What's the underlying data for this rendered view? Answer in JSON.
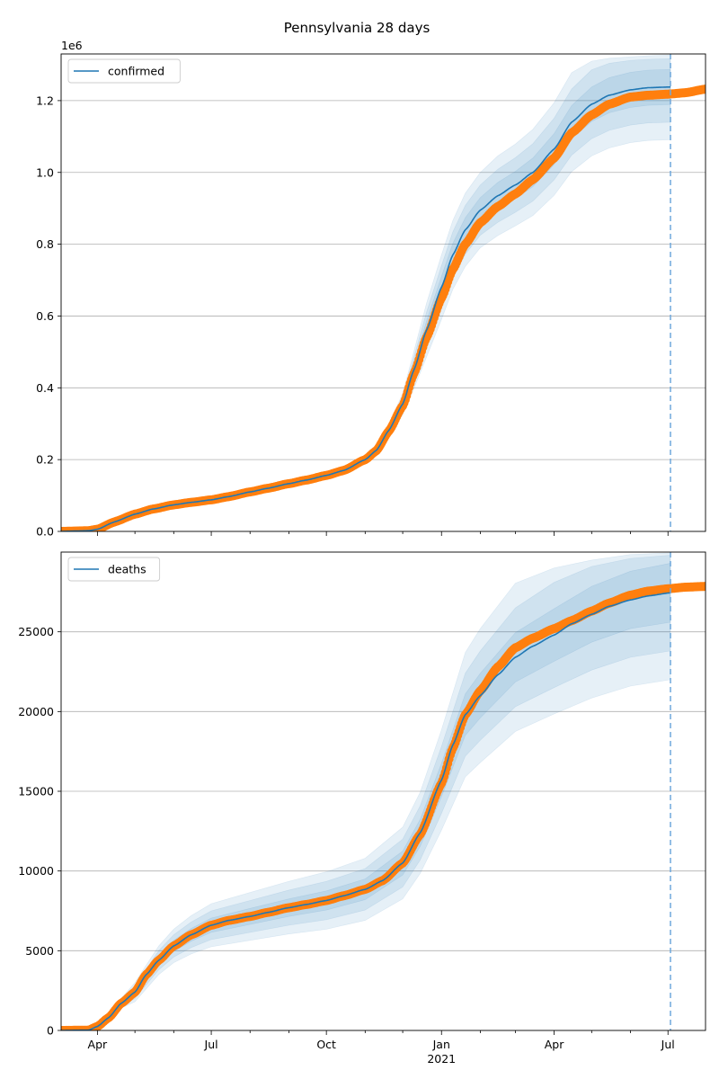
{
  "chart_data": {
    "title": "Pennsylvania 28 days",
    "type": "line",
    "x_axis": {
      "tick_labels": [
        "Apr",
        "Jul",
        "Oct",
        "Jan",
        "Apr",
        "Jul"
      ],
      "tick_dates": [
        "2020-04-01",
        "2020-07-01",
        "2020-10-01",
        "2021-01-01",
        "2021-04-01",
        "2021-07-01"
      ],
      "year_label": "2021",
      "range": [
        "2020-03-03",
        "2021-07-31"
      ]
    },
    "forecast_marker_date": "2021-07-03",
    "panels": [
      {
        "legend": "confirmed",
        "legend_position": "top-left",
        "offset_label": "1e6",
        "ylim": [
          0,
          1.33
        ],
        "yticks": [
          0,
          0.2,
          0.4,
          0.6,
          0.8,
          1.0,
          1.2
        ],
        "ytick_labels": [
          "0.0",
          "0.2",
          "0.4",
          "0.6",
          "0.8",
          "1.0",
          "1.2"
        ],
        "grid": "y",
        "observed": [
          [
            "2020-03-03",
            0
          ],
          [
            "2020-03-25",
            0.002
          ],
          [
            "2020-04-01",
            0.006
          ],
          [
            "2020-04-15",
            0.027
          ],
          [
            "2020-05-01",
            0.048
          ],
          [
            "2020-05-15",
            0.062
          ],
          [
            "2020-06-01",
            0.074
          ],
          [
            "2020-06-15",
            0.081
          ],
          [
            "2020-07-01",
            0.088
          ],
          [
            "2020-07-15",
            0.097
          ],
          [
            "2020-08-01",
            0.11
          ],
          [
            "2020-08-15",
            0.12
          ],
          [
            "2020-09-01",
            0.133
          ],
          [
            "2020-09-15",
            0.143
          ],
          [
            "2020-10-01",
            0.156
          ],
          [
            "2020-10-15",
            0.17
          ],
          [
            "2020-11-01",
            0.2
          ],
          [
            "2020-11-10",
            0.225
          ],
          [
            "2020-11-20",
            0.28
          ],
          [
            "2020-12-01",
            0.35
          ],
          [
            "2020-12-10",
            0.44
          ],
          [
            "2020-12-20",
            0.54
          ],
          [
            "2021-01-01",
            0.65
          ],
          [
            "2021-01-10",
            0.73
          ],
          [
            "2021-01-20",
            0.8
          ],
          [
            "2021-02-01",
            0.86
          ],
          [
            "2021-02-15",
            0.905
          ],
          [
            "2021-03-01",
            0.94
          ],
          [
            "2021-03-15",
            0.98
          ],
          [
            "2021-04-01",
            1.04
          ],
          [
            "2021-04-15",
            1.11
          ],
          [
            "2021-05-01",
            1.16
          ],
          [
            "2021-05-15",
            1.19
          ],
          [
            "2021-06-01",
            1.21
          ],
          [
            "2021-06-15",
            1.215
          ],
          [
            "2021-07-01",
            1.218
          ],
          [
            "2021-07-15",
            1.222
          ],
          [
            "2021-07-31",
            1.232
          ]
        ],
        "model": [
          [
            "2020-03-03",
            0
          ],
          [
            "2020-03-25",
            0.002
          ],
          [
            "2020-04-01",
            0.006
          ],
          [
            "2020-04-15",
            0.027
          ],
          [
            "2020-05-01",
            0.048
          ],
          [
            "2020-05-15",
            0.062
          ],
          [
            "2020-06-01",
            0.074
          ],
          [
            "2020-06-15",
            0.081
          ],
          [
            "2020-07-01",
            0.088
          ],
          [
            "2020-07-15",
            0.097
          ],
          [
            "2020-08-01",
            0.11
          ],
          [
            "2020-08-15",
            0.12
          ],
          [
            "2020-09-01",
            0.133
          ],
          [
            "2020-09-15",
            0.143
          ],
          [
            "2020-10-01",
            0.156
          ],
          [
            "2020-10-15",
            0.17
          ],
          [
            "2020-11-01",
            0.2
          ],
          [
            "2020-11-10",
            0.226
          ],
          [
            "2020-11-20",
            0.282
          ],
          [
            "2020-12-01",
            0.355
          ],
          [
            "2020-12-10",
            0.45
          ],
          [
            "2020-12-20",
            0.56
          ],
          [
            "2021-01-01",
            0.68
          ],
          [
            "2021-01-10",
            0.77
          ],
          [
            "2021-01-20",
            0.84
          ],
          [
            "2021-02-01",
            0.895
          ],
          [
            "2021-02-15",
            0.935
          ],
          [
            "2021-03-01",
            0.965
          ],
          [
            "2021-03-15",
            1.0
          ],
          [
            "2021-04-01",
            1.065
          ],
          [
            "2021-04-15",
            1.14
          ],
          [
            "2021-05-01",
            1.19
          ],
          [
            "2021-05-15",
            1.215
          ],
          [
            "2021-06-01",
            1.23
          ],
          [
            "2021-06-15",
            1.236
          ],
          [
            "2021-07-03",
            1.238
          ]
        ],
        "uncertainty_band": [
          [
            "2020-11-10",
            0.225,
            0.227,
            0.222,
            0.23,
            0.22,
            0.232
          ],
          [
            "2020-11-20",
            0.278,
            0.286,
            0.272,
            0.292,
            0.266,
            0.298
          ],
          [
            "2020-12-01",
            0.345,
            0.365,
            0.335,
            0.375,
            0.325,
            0.385
          ],
          [
            "2020-12-10",
            0.432,
            0.468,
            0.415,
            0.485,
            0.398,
            0.502
          ],
          [
            "2020-12-20",
            0.535,
            0.585,
            0.51,
            0.61,
            0.485,
            0.635
          ],
          [
            "2021-01-01",
            0.65,
            0.71,
            0.62,
            0.74,
            0.59,
            0.77
          ],
          [
            "2021-01-10",
            0.738,
            0.802,
            0.706,
            0.834,
            0.674,
            0.866
          ],
          [
            "2021-01-20",
            0.806,
            0.874,
            0.772,
            0.908,
            0.738,
            0.942
          ],
          [
            "2021-02-01",
            0.86,
            0.93,
            0.825,
            0.965,
            0.79,
            1.0
          ],
          [
            "2021-02-15",
            0.898,
            0.972,
            0.861,
            1.009,
            0.824,
            1.046
          ],
          [
            "2021-03-01",
            0.927,
            1.003,
            0.889,
            1.041,
            0.851,
            1.079
          ],
          [
            "2021-03-15",
            0.96,
            1.04,
            0.92,
            1.08,
            0.88,
            1.12
          ],
          [
            "2021-04-01",
            1.022,
            1.108,
            0.979,
            1.151,
            0.936,
            1.194
          ],
          [
            "2021-04-15",
            1.094,
            1.186,
            1.048,
            1.232,
            1.002,
            1.278
          ],
          [
            "2021-05-01",
            1.142,
            1.238,
            1.094,
            1.286,
            1.046,
            1.31
          ],
          [
            "2021-05-15",
            1.166,
            1.264,
            1.117,
            1.304,
            1.068,
            1.318
          ],
          [
            "2021-06-01",
            1.181,
            1.279,
            1.132,
            1.312,
            1.083,
            1.322
          ],
          [
            "2021-06-15",
            1.187,
            1.285,
            1.138,
            1.315,
            1.089,
            1.325
          ],
          [
            "2021-07-03",
            1.189,
            1.287,
            1.14,
            1.317,
            1.091,
            1.327
          ]
        ]
      },
      {
        "legend": "deaths",
        "legend_position": "top-left",
        "offset_label": "",
        "ylim": [
          0,
          30000
        ],
        "yticks": [
          0,
          5000,
          10000,
          15000,
          20000,
          25000
        ],
        "ytick_labels": [
          "0",
          "5000",
          "10000",
          "15000",
          "20000",
          "25000"
        ],
        "grid": "y",
        "observed": [
          [
            "2020-03-03",
            0
          ],
          [
            "2020-03-25",
            20
          ],
          [
            "2020-04-01",
            250
          ],
          [
            "2020-04-10",
            800
          ],
          [
            "2020-04-20",
            1700
          ],
          [
            "2020-05-01",
            2400
          ],
          [
            "2020-05-10",
            3500
          ],
          [
            "2020-05-20",
            4400
          ],
          [
            "2020-06-01",
            5300
          ],
          [
            "2020-06-15",
            6000
          ],
          [
            "2020-07-01",
            6600
          ],
          [
            "2020-07-15",
            6900
          ],
          [
            "2020-08-01",
            7150
          ],
          [
            "2020-08-15",
            7400
          ],
          [
            "2020-09-01",
            7700
          ],
          [
            "2020-09-15",
            7900
          ],
          [
            "2020-10-01",
            8150
          ],
          [
            "2020-10-15",
            8450
          ],
          [
            "2020-11-01",
            8850
          ],
          [
            "2020-11-15",
            9400
          ],
          [
            "2020-12-01",
            10500
          ],
          [
            "2020-12-15",
            12300
          ],
          [
            "2021-01-01",
            15500
          ],
          [
            "2021-01-10",
            17700
          ],
          [
            "2021-01-20",
            19800
          ],
          [
            "2021-02-01",
            21300
          ],
          [
            "2021-02-15",
            22800
          ],
          [
            "2021-03-01",
            24000
          ],
          [
            "2021-03-15",
            24600
          ],
          [
            "2021-04-01",
            25200
          ],
          [
            "2021-04-15",
            25700
          ],
          [
            "2021-05-01",
            26300
          ],
          [
            "2021-05-15",
            26800
          ],
          [
            "2021-06-01",
            27300
          ],
          [
            "2021-06-15",
            27550
          ],
          [
            "2021-07-01",
            27700
          ],
          [
            "2021-07-15",
            27800
          ],
          [
            "2021-07-31",
            27850
          ]
        ],
        "model": [
          [
            "2020-03-03",
            0
          ],
          [
            "2020-03-25",
            20
          ],
          [
            "2020-04-01",
            250
          ],
          [
            "2020-04-10",
            800
          ],
          [
            "2020-04-20",
            1700
          ],
          [
            "2020-05-01",
            2400
          ],
          [
            "2020-05-10",
            3500
          ],
          [
            "2020-05-20",
            4400
          ],
          [
            "2020-06-01",
            5300
          ],
          [
            "2020-06-15",
            6000
          ],
          [
            "2020-07-01",
            6600
          ],
          [
            "2020-07-15",
            6900
          ],
          [
            "2020-08-01",
            7150
          ],
          [
            "2020-08-15",
            7400
          ],
          [
            "2020-09-01",
            7700
          ],
          [
            "2020-09-15",
            7900
          ],
          [
            "2020-10-01",
            8150
          ],
          [
            "2020-10-15",
            8450
          ],
          [
            "2020-11-01",
            8850
          ],
          [
            "2020-11-15",
            9400
          ],
          [
            "2020-12-01",
            10500
          ],
          [
            "2020-12-15",
            12400
          ],
          [
            "2021-01-01",
            15700
          ],
          [
            "2021-01-10",
            17900
          ],
          [
            "2021-01-20",
            19800
          ],
          [
            "2021-02-01",
            21000
          ],
          [
            "2021-02-15",
            22300
          ],
          [
            "2021-03-01",
            23400
          ],
          [
            "2021-03-15",
            24100
          ],
          [
            "2021-04-01",
            24800
          ],
          [
            "2021-04-15",
            25500
          ],
          [
            "2021-05-01",
            26100
          ],
          [
            "2021-05-15",
            26600
          ],
          [
            "2021-06-01",
            27000
          ],
          [
            "2021-06-15",
            27250
          ],
          [
            "2021-07-03",
            27450
          ]
        ],
        "uncertainty_band": [
          [
            "2020-04-20",
            1600,
            1800,
            1500,
            1900,
            1400,
            2000
          ],
          [
            "2020-05-01",
            2200,
            2600,
            2000,
            2800,
            1800,
            3000
          ],
          [
            "2020-05-20",
            4100,
            4700,
            3800,
            5000,
            3500,
            5300
          ],
          [
            "2020-06-01",
            4950,
            5650,
            4600,
            6000,
            4250,
            6350
          ],
          [
            "2020-06-15",
            5600,
            6400,
            5200,
            6800,
            4800,
            7200
          ],
          [
            "2020-07-01",
            6150,
            7050,
            5700,
            7500,
            5250,
            7950
          ],
          [
            "2020-08-01",
            6650,
            7650,
            6150,
            8150,
            5650,
            8650
          ],
          [
            "2020-09-01",
            7150,
            8250,
            6600,
            8800,
            6050,
            9350
          ],
          [
            "2020-10-01",
            7550,
            8750,
            6950,
            9350,
            6350,
            9950
          ],
          [
            "2020-11-01",
            8200,
            9500,
            7550,
            10150,
            6900,
            10800
          ],
          [
            "2020-12-01",
            9750,
            11250,
            9000,
            12000,
            8250,
            12750
          ],
          [
            "2020-12-15",
            11550,
            13250,
            10700,
            14100,
            9850,
            14950
          ],
          [
            "2021-01-01",
            14650,
            16750,
            13600,
            17800,
            12550,
            18850
          ],
          [
            "2021-01-20",
            18500,
            21100,
            17200,
            22400,
            15900,
            23700
          ],
          [
            "2021-02-01",
            19600,
            22400,
            18200,
            23800,
            16800,
            25200
          ],
          [
            "2021-03-01",
            21850,
            24950,
            20300,
            26500,
            18750,
            28050
          ],
          [
            "2021-04-01",
            23150,
            26450,
            21500,
            28100,
            19850,
            29000
          ],
          [
            "2021-05-01",
            24350,
            27850,
            22600,
            29100,
            20850,
            29500
          ],
          [
            "2021-06-01",
            25200,
            28800,
            23400,
            29600,
            21600,
            29850
          ],
          [
            "2021-07-03",
            25600,
            29300,
            23800,
            29800,
            22000,
            29950
          ]
        ]
      }
    ]
  },
  "colors": {
    "model_line": "#1f77b4",
    "observed_points": "#ff7f0e",
    "band": "#1f77b4",
    "forecast_marker": "#6fa8dc",
    "grid": "#b0b0b0"
  }
}
